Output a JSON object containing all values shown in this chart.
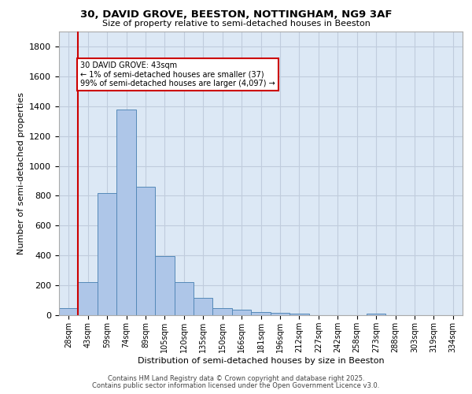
{
  "title_line1": "30, DAVID GROVE, BEESTON, NOTTINGHAM, NG9 3AF",
  "title_line2": "Size of property relative to semi-detached houses in Beeston",
  "xlabel": "Distribution of semi-detached houses by size in Beeston",
  "ylabel": "Number of semi-detached properties",
  "categories": [
    "28sqm",
    "43sqm",
    "59sqm",
    "74sqm",
    "89sqm",
    "105sqm",
    "120sqm",
    "135sqm",
    "150sqm",
    "166sqm",
    "181sqm",
    "196sqm",
    "212sqm",
    "227sqm",
    "242sqm",
    "258sqm",
    "273sqm",
    "288sqm",
    "303sqm",
    "319sqm",
    "334sqm"
  ],
  "values": [
    50,
    220,
    820,
    1380,
    860,
    395,
    220,
    115,
    50,
    35,
    22,
    17,
    10,
    0,
    0,
    0,
    10,
    0,
    0,
    0,
    0
  ],
  "bar_color": "#aec6e8",
  "bar_edge_color": "#5589b8",
  "background_color": "#dce8f5",
  "grid_color": "#c0ccdd",
  "vline_color": "#cc0000",
  "annotation_text": "30 DAVID GROVE: 43sqm\n← 1% of semi-detached houses are smaller (37)\n99% of semi-detached houses are larger (4,097) →",
  "annotation_box_color": "#ffffff",
  "annotation_box_edge": "#cc0000",
  "ylim": [
    0,
    1900
  ],
  "yticks": [
    0,
    200,
    400,
    600,
    800,
    1000,
    1200,
    1400,
    1600,
    1800
  ],
  "footer_line1": "Contains HM Land Registry data © Crown copyright and database right 2025.",
  "footer_line2": "Contains public sector information licensed under the Open Government Licence v3.0."
}
